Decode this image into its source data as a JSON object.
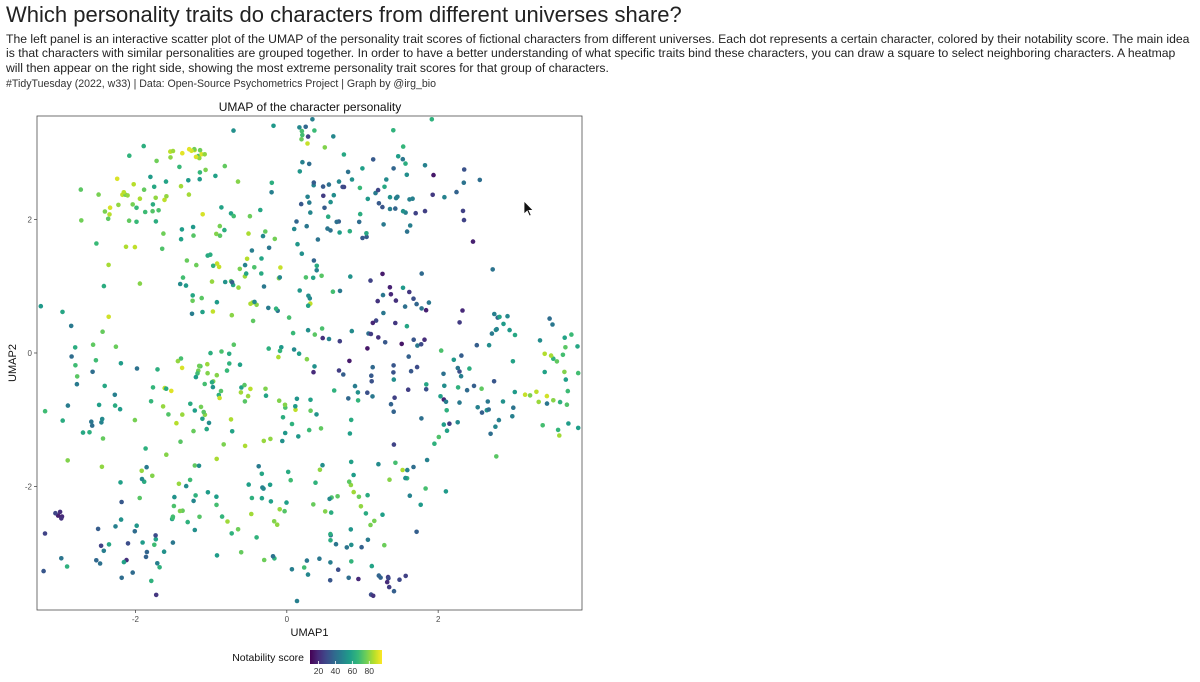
{
  "header": {
    "title": "Which personality traits do characters from different universes share?",
    "description": "The left panel is an interactive scatter plot of the UMAP of the personality trait scores of fictional characters from different universes. Each dot represents a certain character, colored by their notability score. The main idea is that characters with similar personalities are grouped together. In order to have a better understanding of what specific traits bind these characters, you can draw a square to select neighboring characters. A heatmap will then appear on the right side, showing the most extreme personality trait scores for that group of characters.",
    "caption": "#TidyTuesday (2022, w33) | Data: Open-Source Psychometrics Project | Graph by @irg_bio"
  },
  "chart_data": {
    "type": "scatter",
    "title": "UMAP of the character personality",
    "xlabel": "UMAP1",
    "ylabel": "UMAP2",
    "xlim": [
      -3.3,
      3.9
    ],
    "ylim": [
      -3.85,
      3.55
    ],
    "xticks": [
      -2,
      0,
      2
    ],
    "yticks": [
      -2,
      0,
      2
    ],
    "grid": false,
    "color_variable": "Notability score",
    "color_scale": "viridis",
    "color_range": [
      10,
      95
    ],
    "legend": {
      "title": "Notability score",
      "placement": "bottom",
      "ticks": [
        20,
        40,
        60,
        80
      ],
      "colors": [
        "#440154",
        "#482878",
        "#3e4989",
        "#31688e",
        "#26828e",
        "#1f9e89",
        "#35b779",
        "#6ece58",
        "#b5de2b",
        "#fde725"
      ]
    },
    "clusters": [
      {
        "cx": -1.35,
        "cy": 2.2,
        "sx": 0.55,
        "sy": 0.55,
        "n": 55,
        "score": [
          55,
          88
        ]
      },
      {
        "cx": -2.3,
        "cy": 2.3,
        "sx": 0.25,
        "sy": 0.25,
        "n": 15,
        "score": [
          70,
          92
        ]
      },
      {
        "cx": -1.3,
        "cy": 3.0,
        "sx": 0.18,
        "sy": 0.08,
        "n": 12,
        "score": [
          75,
          92
        ]
      },
      {
        "cx": 0.2,
        "cy": 3.2,
        "sx": 0.4,
        "sy": 0.2,
        "n": 15,
        "score": [
          45,
          88
        ]
      },
      {
        "cx": 0.55,
        "cy": 2.2,
        "sx": 0.45,
        "sy": 0.45,
        "n": 45,
        "score": [
          25,
          65
        ]
      },
      {
        "cx": 1.6,
        "cy": 2.4,
        "sx": 0.4,
        "sy": 0.4,
        "n": 25,
        "score": [
          25,
          70
        ]
      },
      {
        "cx": 2.3,
        "cy": 2.2,
        "sx": 0.2,
        "sy": 0.3,
        "n": 10,
        "score": [
          15,
          45
        ]
      },
      {
        "cx": -0.8,
        "cy": 1.0,
        "sx": 0.5,
        "sy": 0.45,
        "n": 40,
        "score": [
          45,
          90
        ]
      },
      {
        "cx": 0.3,
        "cy": 0.9,
        "sx": 0.5,
        "sy": 0.5,
        "n": 40,
        "score": [
          35,
          75
        ]
      },
      {
        "cx": 1.4,
        "cy": 0.6,
        "sx": 0.4,
        "sy": 0.4,
        "n": 30,
        "score": [
          15,
          45
        ]
      },
      {
        "cx": -2.5,
        "cy": -0.4,
        "sx": 0.35,
        "sy": 0.5,
        "n": 30,
        "score": [
          40,
          80
        ]
      },
      {
        "cx": -1.3,
        "cy": -0.6,
        "sx": 0.5,
        "sy": 0.45,
        "n": 45,
        "score": [
          55,
          92
        ]
      },
      {
        "cx": -0.1,
        "cy": -0.8,
        "sx": 0.5,
        "sy": 0.45,
        "n": 35,
        "score": [
          50,
          88
        ]
      },
      {
        "cx": 1.2,
        "cy": -0.4,
        "sx": 0.45,
        "sy": 0.4,
        "n": 30,
        "score": [
          15,
          55
        ]
      },
      {
        "cx": 2.6,
        "cy": -0.2,
        "sx": 0.4,
        "sy": 0.45,
        "n": 25,
        "score": [
          30,
          65
        ]
      },
      {
        "cx": 3.6,
        "cy": -0.5,
        "sx": 0.22,
        "sy": 0.4,
        "n": 25,
        "score": [
          55,
          90
        ]
      },
      {
        "cx": 3.2,
        "cy": 0.4,
        "sx": 0.3,
        "sy": 0.35,
        "n": 12,
        "score": [
          40,
          75
        ]
      },
      {
        "cx": -1.6,
        "cy": -2.2,
        "sx": 0.5,
        "sy": 0.5,
        "n": 35,
        "score": [
          40,
          85
        ]
      },
      {
        "cx": -0.2,
        "cy": -2.2,
        "sx": 0.5,
        "sy": 0.5,
        "n": 35,
        "score": [
          45,
          85
        ]
      },
      {
        "cx": 1.2,
        "cy": -2.0,
        "sx": 0.45,
        "sy": 0.45,
        "n": 30,
        "score": [
          40,
          85
        ]
      },
      {
        "cx": -2.2,
        "cy": -3.0,
        "sx": 0.45,
        "sy": 0.25,
        "n": 30,
        "score": [
          20,
          65
        ]
      },
      {
        "cx": 0.5,
        "cy": -3.1,
        "sx": 0.4,
        "sy": 0.3,
        "n": 20,
        "score": [
          30,
          70
        ]
      },
      {
        "cx": 1.3,
        "cy": -3.5,
        "sx": 0.18,
        "sy": 0.12,
        "n": 12,
        "score": [
          15,
          40
        ]
      },
      {
        "cx": -3.0,
        "cy": -2.4,
        "sx": 0.1,
        "sy": 0.05,
        "n": 5,
        "score": [
          15,
          30
        ]
      },
      {
        "cx": 2.3,
        "cy": -1.0,
        "sx": 0.35,
        "sy": 0.5,
        "n": 20,
        "score": [
          40,
          75
        ]
      }
    ]
  },
  "cursor_icon": "arrow-pointer"
}
